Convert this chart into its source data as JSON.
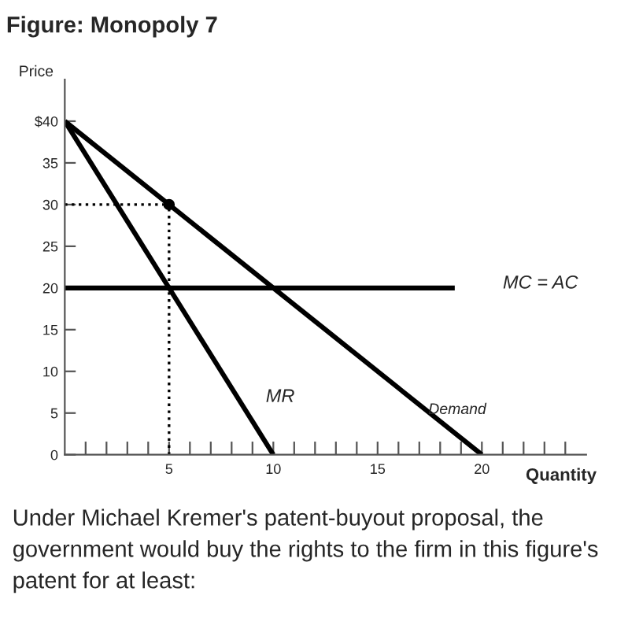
{
  "chart_data": {
    "type": "line",
    "title": "Figure: Monopoly 7",
    "xlabel": "Quantity",
    "ylabel": "Price",
    "xlim": [
      0,
      25
    ],
    "ylim": [
      0,
      45
    ],
    "xticks": [
      {
        "value": 1,
        "label": null
      },
      {
        "value": 2,
        "label": null
      },
      {
        "value": 3,
        "label": null
      },
      {
        "value": 4,
        "label": null
      },
      5,
      {
        "value": 6,
        "label": null
      },
      {
        "value": 7,
        "label": null
      },
      {
        "value": 8,
        "label": null
      },
      {
        "value": 9,
        "label": null
      },
      10,
      {
        "value": 11,
        "label": null
      },
      {
        "value": 12,
        "label": null
      },
      {
        "value": 13,
        "label": null
      },
      {
        "value": 14,
        "label": null
      },
      15,
      {
        "value": 16,
        "label": null
      },
      {
        "value": 17,
        "label": null
      },
      {
        "value": 18,
        "label": null
      },
      {
        "value": 19,
        "label": null
      },
      20,
      {
        "value": 21,
        "label": null
      },
      {
        "value": 22,
        "label": null
      },
      {
        "value": 23,
        "label": null
      },
      {
        "value": 24,
        "label": null
      }
    ],
    "yticks": [
      0,
      5,
      10,
      15,
      20,
      25,
      30,
      35,
      {
        "value": 40,
        "label": "$40"
      }
    ],
    "grid": false,
    "legend": false,
    "marker": "none",
    "series": [
      {
        "name": "Demand",
        "color": "#000000",
        "x": [
          0,
          20
        ],
        "values": [
          40,
          0
        ]
      },
      {
        "name": "MR",
        "color": "#000000",
        "x": [
          0,
          10
        ],
        "values": [
          40,
          0
        ]
      },
      {
        "name": "MC = AC",
        "color": "#000000",
        "x": [
          0,
          18.7
        ],
        "values": [
          20,
          20
        ]
      },
      {
        "color": "#000000",
        "x": [
          5,
          5
        ],
        "values": [
          0,
          30
        ],
        "line_style": "dotted"
      },
      {
        "color": "#000000",
        "x": [
          0,
          5
        ],
        "values": [
          30,
          30
        ],
        "line_style": "dotted"
      },
      {
        "type": "scatter",
        "color": "#000000",
        "x": [
          5
        ],
        "values": [
          30
        ],
        "marker": "circle"
      }
    ],
    "annotations": [
      "Under Michael Kremer's patent-buyout proposal, the government would buy the rights to the firm in this figure's patent for at least:"
    ]
  }
}
